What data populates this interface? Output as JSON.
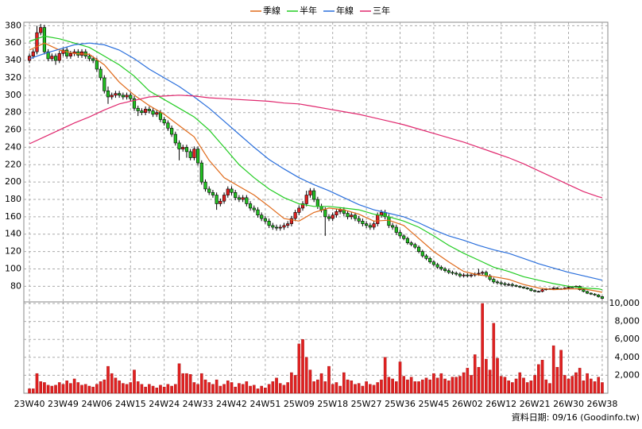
{
  "chart_data": {
    "type": "candlestick",
    "grid": true,
    "up_color": "#e02020",
    "down_color": "#22c022",
    "xlim": [
      -1.5,
      154.5
    ],
    "xticks": [
      {
        "value": 0,
        "label": "23W40"
      },
      {
        "value": 9,
        "label": "23W49"
      },
      {
        "value": 18,
        "label": "24W06"
      },
      {
        "value": 27,
        "label": "24W15"
      },
      {
        "value": 36,
        "label": "24W24"
      },
      {
        "value": 45,
        "label": "24W33"
      },
      {
        "value": 54,
        "label": "24W42"
      },
      {
        "value": 63,
        "label": "24W51"
      },
      {
        "value": 72,
        "label": "25W09"
      },
      {
        "value": 81,
        "label": "25W18"
      },
      {
        "value": 90,
        "label": "25W27"
      },
      {
        "value": 99,
        "label": "25W36"
      },
      {
        "value": 108,
        "label": "25W45"
      },
      {
        "value": 117,
        "label": "26W02"
      },
      {
        "value": 126,
        "label": "26W12"
      },
      {
        "value": 135,
        "label": "26W21"
      },
      {
        "value": 144,
        "label": "26W30"
      },
      {
        "value": 153,
        "label": "26W38"
      }
    ],
    "ylim": [
      62,
      384
    ],
    "yticks": [
      80,
      100,
      120,
      140,
      160,
      180,
      200,
      220,
      240,
      260,
      280,
      300,
      320,
      340,
      360,
      380
    ],
    "ohlc": [
      [
        340,
        348,
        337,
        345
      ],
      [
        345,
        353,
        342,
        350
      ],
      [
        350,
        380,
        347,
        372
      ],
      [
        372,
        382,
        369,
        378
      ],
      [
        378,
        381,
        347,
        350
      ],
      [
        350,
        353,
        339,
        342
      ],
      [
        342,
        348,
        339,
        345
      ],
      [
        345,
        348,
        335,
        340
      ],
      [
        340,
        351,
        337,
        348
      ],
      [
        348,
        355,
        345,
        352
      ],
      [
        352,
        355,
        342,
        345
      ],
      [
        345,
        351,
        342,
        348
      ],
      [
        348,
        353,
        345,
        350
      ],
      [
        350,
        353,
        343,
        346
      ],
      [
        346,
        353,
        343,
        350
      ],
      [
        350,
        353,
        342,
        345
      ],
      [
        345,
        348,
        339,
        342
      ],
      [
        342,
        345,
        337,
        340
      ],
      [
        340,
        343,
        327,
        330
      ],
      [
        330,
        333,
        317,
        320
      ],
      [
        320,
        323,
        302,
        305
      ],
      [
        305,
        310,
        290,
        298
      ],
      [
        298,
        303,
        295,
        300
      ],
      [
        300,
        305,
        297,
        302
      ],
      [
        302,
        305,
        297,
        300
      ],
      [
        300,
        303,
        295,
        298
      ],
      [
        298,
        303,
        295,
        300
      ],
      [
        300,
        303,
        293,
        296
      ],
      [
        296,
        299,
        282,
        285
      ],
      [
        285,
        288,
        276,
        282
      ],
      [
        282,
        285,
        277,
        280
      ],
      [
        280,
        287,
        277,
        284
      ],
      [
        284,
        287,
        279,
        282
      ],
      [
        282,
        285,
        275,
        278
      ],
      [
        278,
        283,
        275,
        280
      ],
      [
        280,
        283,
        269,
        272
      ],
      [
        272,
        275,
        265,
        268
      ],
      [
        268,
        271,
        259,
        262
      ],
      [
        262,
        265,
        252,
        255
      ],
      [
        255,
        258,
        242,
        245
      ],
      [
        245,
        248,
        225,
        238
      ],
      [
        238,
        243,
        235,
        240
      ],
      [
        240,
        243,
        228,
        235
      ],
      [
        235,
        238,
        225,
        228
      ],
      [
        228,
        241,
        225,
        238
      ],
      [
        238,
        241,
        219,
        222
      ],
      [
        222,
        225,
        197,
        200
      ],
      [
        200,
        203,
        189,
        192
      ],
      [
        192,
        195,
        185,
        188
      ],
      [
        188,
        191,
        182,
        185
      ],
      [
        185,
        188,
        168,
        175
      ],
      [
        175,
        181,
        172,
        178
      ],
      [
        178,
        188,
        175,
        185
      ],
      [
        185,
        195,
        182,
        192
      ],
      [
        192,
        195,
        185,
        188
      ],
      [
        188,
        191,
        179,
        182
      ],
      [
        182,
        185,
        177,
        180
      ],
      [
        180,
        185,
        177,
        182
      ],
      [
        182,
        185,
        172,
        175
      ],
      [
        175,
        178,
        167,
        170
      ],
      [
        170,
        173,
        165,
        168
      ],
      [
        168,
        171,
        159,
        162
      ],
      [
        162,
        165,
        155,
        158
      ],
      [
        158,
        161,
        152,
        155
      ],
      [
        155,
        158,
        147,
        150
      ],
      [
        150,
        153,
        145,
        148
      ],
      [
        148,
        151,
        144,
        147
      ],
      [
        147,
        151,
        144,
        148
      ],
      [
        148,
        153,
        145,
        150
      ],
      [
        150,
        155,
        147,
        152
      ],
      [
        152,
        161,
        149,
        158
      ],
      [
        158,
        168,
        155,
        165
      ],
      [
        165,
        173,
        162,
        170
      ],
      [
        170,
        178,
        167,
        175
      ],
      [
        175,
        190,
        172,
        185
      ],
      [
        185,
        193,
        182,
        190
      ],
      [
        190,
        193,
        177,
        180
      ],
      [
        180,
        183,
        169,
        172
      ],
      [
        172,
        175,
        165,
        168
      ],
      [
        168,
        171,
        138,
        160
      ],
      [
        160,
        163,
        155,
        158
      ],
      [
        158,
        165,
        155,
        162
      ],
      [
        162,
        169,
        159,
        166
      ],
      [
        166,
        171,
        163,
        168
      ],
      [
        168,
        171,
        161,
        164
      ],
      [
        164,
        167,
        157,
        160
      ],
      [
        160,
        165,
        157,
        162
      ],
      [
        162,
        165,
        155,
        158
      ],
      [
        158,
        161,
        152,
        155
      ],
      [
        155,
        158,
        149,
        152
      ],
      [
        152,
        155,
        147,
        150
      ],
      [
        150,
        153,
        145,
        148
      ],
      [
        148,
        155,
        145,
        152
      ],
      [
        152,
        165,
        149,
        162
      ],
      [
        162,
        168,
        159,
        165
      ],
      [
        165,
        168,
        157,
        160
      ],
      [
        160,
        163,
        147,
        150
      ],
      [
        150,
        153,
        145,
        148
      ],
      [
        148,
        151,
        139,
        142
      ],
      [
        142,
        145,
        135,
        138
      ],
      [
        138,
        140,
        133,
        135
      ],
      [
        135,
        137,
        128,
        130
      ],
      [
        130,
        132,
        126,
        128
      ],
      [
        128,
        130,
        123,
        125
      ],
      [
        125,
        127,
        118,
        120
      ],
      [
        120,
        122,
        113,
        115
      ],
      [
        115,
        117,
        110,
        112
      ],
      [
        112,
        114,
        106,
        108
      ],
      [
        108,
        110,
        103,
        105
      ],
      [
        105,
        107,
        100,
        102
      ],
      [
        102,
        104,
        98,
        100
      ],
      [
        100,
        102,
        96,
        98
      ],
      [
        98,
        100,
        94,
        96
      ],
      [
        96,
        98,
        93,
        95
      ],
      [
        95,
        97,
        92,
        94
      ],
      [
        94,
        96,
        90,
        92
      ],
      [
        92,
        95,
        90,
        93
      ],
      [
        93,
        95,
        90,
        92
      ],
      [
        92,
        95,
        90,
        93
      ],
      [
        93,
        96,
        91,
        94
      ],
      [
        94,
        100,
        92,
        95
      ],
      [
        95,
        98,
        93,
        96
      ],
      [
        96,
        98,
        90,
        92
      ],
      [
        92,
        94,
        86,
        88
      ],
      [
        88,
        90,
        83,
        85
      ],
      [
        85,
        87,
        82,
        84
      ],
      [
        84,
        86,
        81,
        83
      ],
      [
        83,
        85,
        80,
        82
      ],
      [
        82,
        84,
        80,
        82
      ],
      [
        82,
        84,
        79,
        81
      ],
      [
        81,
        82,
        79,
        80
      ],
      [
        80,
        81,
        78,
        79
      ],
      [
        79,
        80,
        77,
        78
      ],
      [
        78,
        79,
        76,
        77
      ],
      [
        77,
        78,
        74,
        75
      ],
      [
        75,
        76,
        73,
        74
      ],
      [
        74,
        75,
        73,
        74
      ],
      [
        74,
        77,
        73,
        76
      ],
      [
        76,
        78,
        75,
        77
      ],
      [
        77,
        78,
        76,
        77
      ],
      [
        77,
        79,
        76,
        78
      ],
      [
        78,
        79,
        76,
        77
      ],
      [
        77,
        78,
        76,
        77
      ],
      [
        77,
        79,
        76,
        78
      ],
      [
        78,
        80,
        77,
        79
      ],
      [
        79,
        80,
        78,
        79
      ],
      [
        79,
        81,
        78,
        80
      ],
      [
        80,
        81,
        75,
        76
      ],
      [
        76,
        77,
        73,
        74
      ],
      [
        74,
        75,
        71,
        72
      ],
      [
        72,
        73,
        70,
        71
      ],
      [
        71,
        72,
        69,
        70
      ],
      [
        70,
        71,
        67,
        68
      ],
      [
        68,
        69,
        65,
        66
      ]
    ],
    "x": [
      0,
      4,
      8,
      12,
      16,
      20,
      24,
      28,
      32,
      36,
      40,
      44,
      48,
      52,
      56,
      60,
      64,
      68,
      72,
      76,
      80,
      84,
      88,
      92,
      96,
      100,
      104,
      108,
      112,
      116,
      120,
      124,
      128,
      132,
      136,
      140,
      144,
      148,
      152,
      153
    ],
    "series": [
      {
        "name": "季線",
        "color": "#e06a1a",
        "values": [
          352,
          360,
          352,
          348,
          347,
          335,
          315,
          300,
          288,
          278,
          265,
          252,
          225,
          205,
          195,
          185,
          172,
          158,
          155,
          165,
          170,
          168,
          163,
          155,
          156,
          150,
          135,
          120,
          108,
          97,
          93,
          91,
          88,
          82,
          78,
          76,
          77,
          77,
          74,
          73
        ]
      },
      {
        "name": "半年",
        "color": "#22cc22",
        "values": [
          362,
          368,
          365,
          360,
          355,
          345,
          335,
          322,
          305,
          295,
          285,
          275,
          260,
          240,
          220,
          205,
          192,
          182,
          175,
          172,
          172,
          170,
          168,
          163,
          160,
          155,
          148,
          138,
          127,
          118,
          110,
          102,
          97,
          91,
          87,
          83,
          80,
          78,
          77,
          76
        ]
      },
      {
        "name": "年線",
        "color": "#2a6fdc",
        "values": [
          342,
          348,
          353,
          358,
          360,
          358,
          352,
          342,
          330,
          320,
          310,
          298,
          285,
          270,
          255,
          240,
          226,
          215,
          205,
          197,
          190,
          182,
          174,
          168,
          164,
          160,
          153,
          145,
          138,
          133,
          127,
          122,
          118,
          112,
          106,
          101,
          96,
          92,
          88,
          87
        ]
      },
      {
        "name": "三年",
        "color": "#e0286e",
        "values": [
          244,
          252,
          260,
          268,
          275,
          283,
          290,
          294,
          298,
          299,
          300,
          299,
          297,
          296,
          295,
          294,
          293,
          291,
          290,
          287,
          284,
          281,
          278,
          274,
          270,
          266,
          261,
          256,
          251,
          246,
          240,
          234,
          228,
          221,
          213,
          205,
          197,
          189,
          183,
          182
        ]
      }
    ],
    "volume": {
      "color": "#e02020",
      "ylim": [
        0,
        10000
      ],
      "yticks": [
        {
          "value": 2000,
          "label": "2,000"
        },
        {
          "value": 4000,
          "label": "4,000"
        },
        {
          "value": 6000,
          "label": "6,000"
        },
        {
          "value": 8000,
          "label": "8,000"
        },
        {
          "value": 10000,
          "label": "10,000"
        }
      ],
      "values": [
        500,
        500,
        2200,
        1300,
        1200,
        900,
        800,
        900,
        1200,
        1000,
        1400,
        1100,
        1600,
        1200,
        900,
        1000,
        800,
        700,
        1000,
        1300,
        1500,
        3000,
        2200,
        1700,
        1400,
        1100,
        1000,
        1200,
        2600,
        1300,
        1000,
        700,
        1000,
        800,
        600,
        900,
        700,
        1000,
        800,
        1000,
        3300,
        2200,
        2200,
        2100,
        1200,
        1000,
        2200,
        1500,
        1200,
        1000,
        1500,
        800,
        1000,
        1400,
        1200,
        700,
        1100,
        1000,
        1300,
        800,
        900,
        500,
        800,
        600,
        1000,
        1300,
        1700,
        1100,
        900,
        1200,
        2300,
        2000,
        5500,
        6000,
        4000,
        2600,
        1300,
        1500,
        2200,
        1300,
        3000,
        1000,
        1200,
        800,
        2300,
        1500,
        1400,
        1000,
        1100,
        800,
        1300,
        1000,
        900,
        1200,
        1500,
        4000,
        1800,
        1600,
        1300,
        3500,
        1900,
        1500,
        1800,
        1300,
        1300,
        1500,
        1700,
        1500,
        2200,
        1700,
        2200,
        1600,
        1400,
        1800,
        1800,
        1900,
        2300,
        2800,
        2000,
        4300,
        2900,
        10000,
        3800,
        2600,
        7800,
        3900,
        1900,
        1800,
        1400,
        1200,
        1600,
        2300,
        1700,
        1200,
        1400,
        2000,
        3200,
        3700,
        1500,
        1100,
        5300,
        2900,
        4800,
        2000,
        1600,
        1900,
        2300,
        2800,
        1400,
        2200,
        1600,
        1300,
        1800,
        1200
      ]
    },
    "footnote": "資料日期: 09/16 (Goodinfo.tw)"
  }
}
